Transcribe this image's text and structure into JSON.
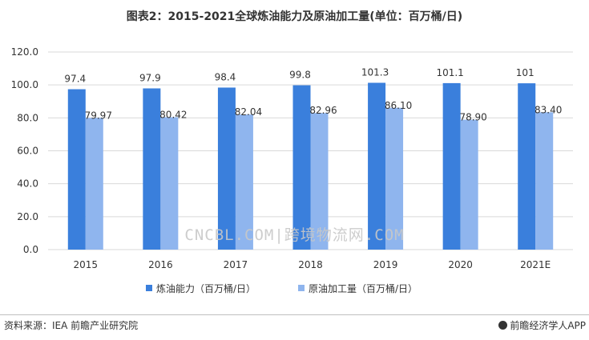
{
  "title": "图表2：2015-2021全球炼油能力及原油加工量(单位：百万桶/日)",
  "watermark": "CNCBL.COM|跨境物流网.COM",
  "source": "资料来源：IEA 前瞻产业研究院",
  "brand": "前瞻经济学人APP",
  "chart_data": {
    "type": "bar",
    "categories": [
      "2015",
      "2016",
      "2017",
      "2018",
      "2019",
      "2020",
      "2021E"
    ],
    "series": [
      {
        "name": "炼油能力（百万桶/日）",
        "values": [
          97.4,
          97.9,
          98.4,
          99.8,
          101.3,
          101.1,
          101
        ],
        "labels": [
          "97.4",
          "97.9",
          "98.4",
          "99.8",
          "101.3",
          "101.1",
          "101"
        ],
        "color": "#3a7fdc"
      },
      {
        "name": "原油加工量（百万桶/日）",
        "values": [
          79.97,
          80.42,
          82.04,
          82.96,
          86.1,
          78.9,
          83.4
        ],
        "labels": [
          "79.97",
          "80.42",
          "82.04",
          "82.96",
          "86.10",
          "78.90",
          "83.40"
        ],
        "color": "#8fb5ee"
      }
    ],
    "yticks": [
      "0.0",
      "20.0",
      "40.0",
      "60.0",
      "80.0",
      "100.0",
      "120.0"
    ],
    "ylim": [
      0,
      120
    ],
    "grid": true,
    "legend_position": "bottom"
  }
}
